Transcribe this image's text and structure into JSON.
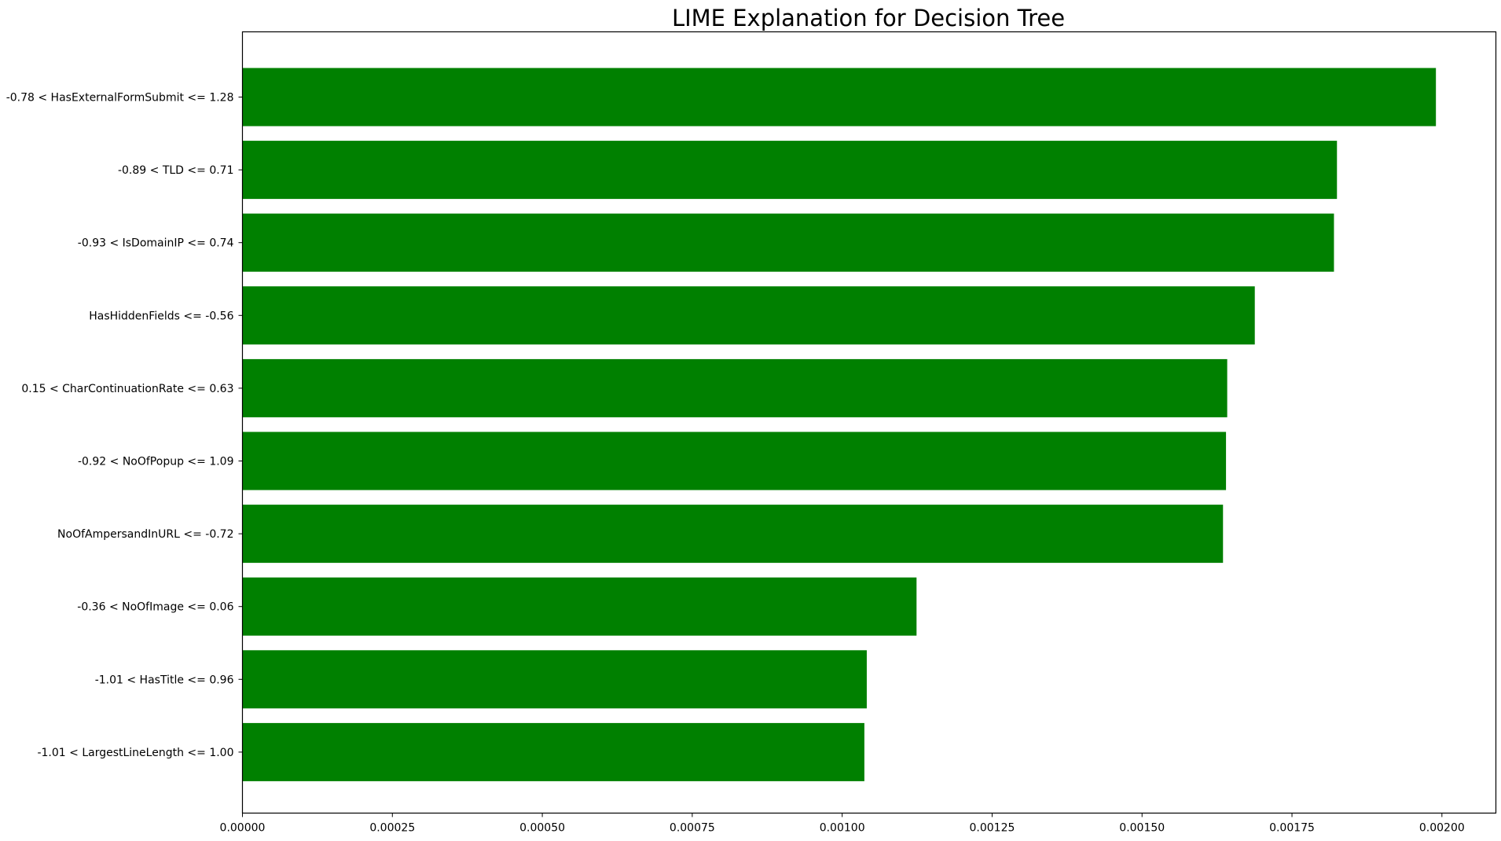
{
  "chart_data": {
    "type": "bar",
    "orientation": "horizontal",
    "title": "LIME Explanation for Decision Tree",
    "xlabel": "",
    "ylabel": "",
    "bar_color": "#008000",
    "xlim": [
      0,
      0.00209
    ],
    "grid": false,
    "categories": [
      "-0.78 < HasExternalFormSubmit <= 1.28",
      "-0.89 < TLD <= 0.71",
      "-0.93 < IsDomainIP <= 0.74",
      "HasHiddenFields <= -0.56",
      "0.15 < CharContinuationRate <= 0.63",
      "-0.92 < NoOfPopup <= 1.09",
      "NoOfAmpersandInURL <= -0.72",
      "-0.36 < NoOfImage <= 0.06",
      "-1.01 < HasTitle <= 0.96",
      "-1.01 < LargestLineLength <= 1.00"
    ],
    "values": [
      0.00199,
      0.001825,
      0.00182,
      0.001688,
      0.001642,
      0.00164,
      0.001635,
      0.001124,
      0.001041,
      0.001037
    ],
    "xticks": [
      {
        "value": 0,
        "label": "0.00000"
      },
      {
        "value": 0.00025,
        "label": "0.00025"
      },
      {
        "value": 0.0005,
        "label": "0.00050"
      },
      {
        "value": 0.00075,
        "label": "0.00075"
      },
      {
        "value": 0.001,
        "label": "0.00100"
      },
      {
        "value": 0.00125,
        "label": "0.00125"
      },
      {
        "value": 0.0015,
        "label": "0.00150"
      },
      {
        "value": 0.00175,
        "label": "0.00175"
      },
      {
        "value": 0.002,
        "label": "0.00200"
      }
    ]
  }
}
